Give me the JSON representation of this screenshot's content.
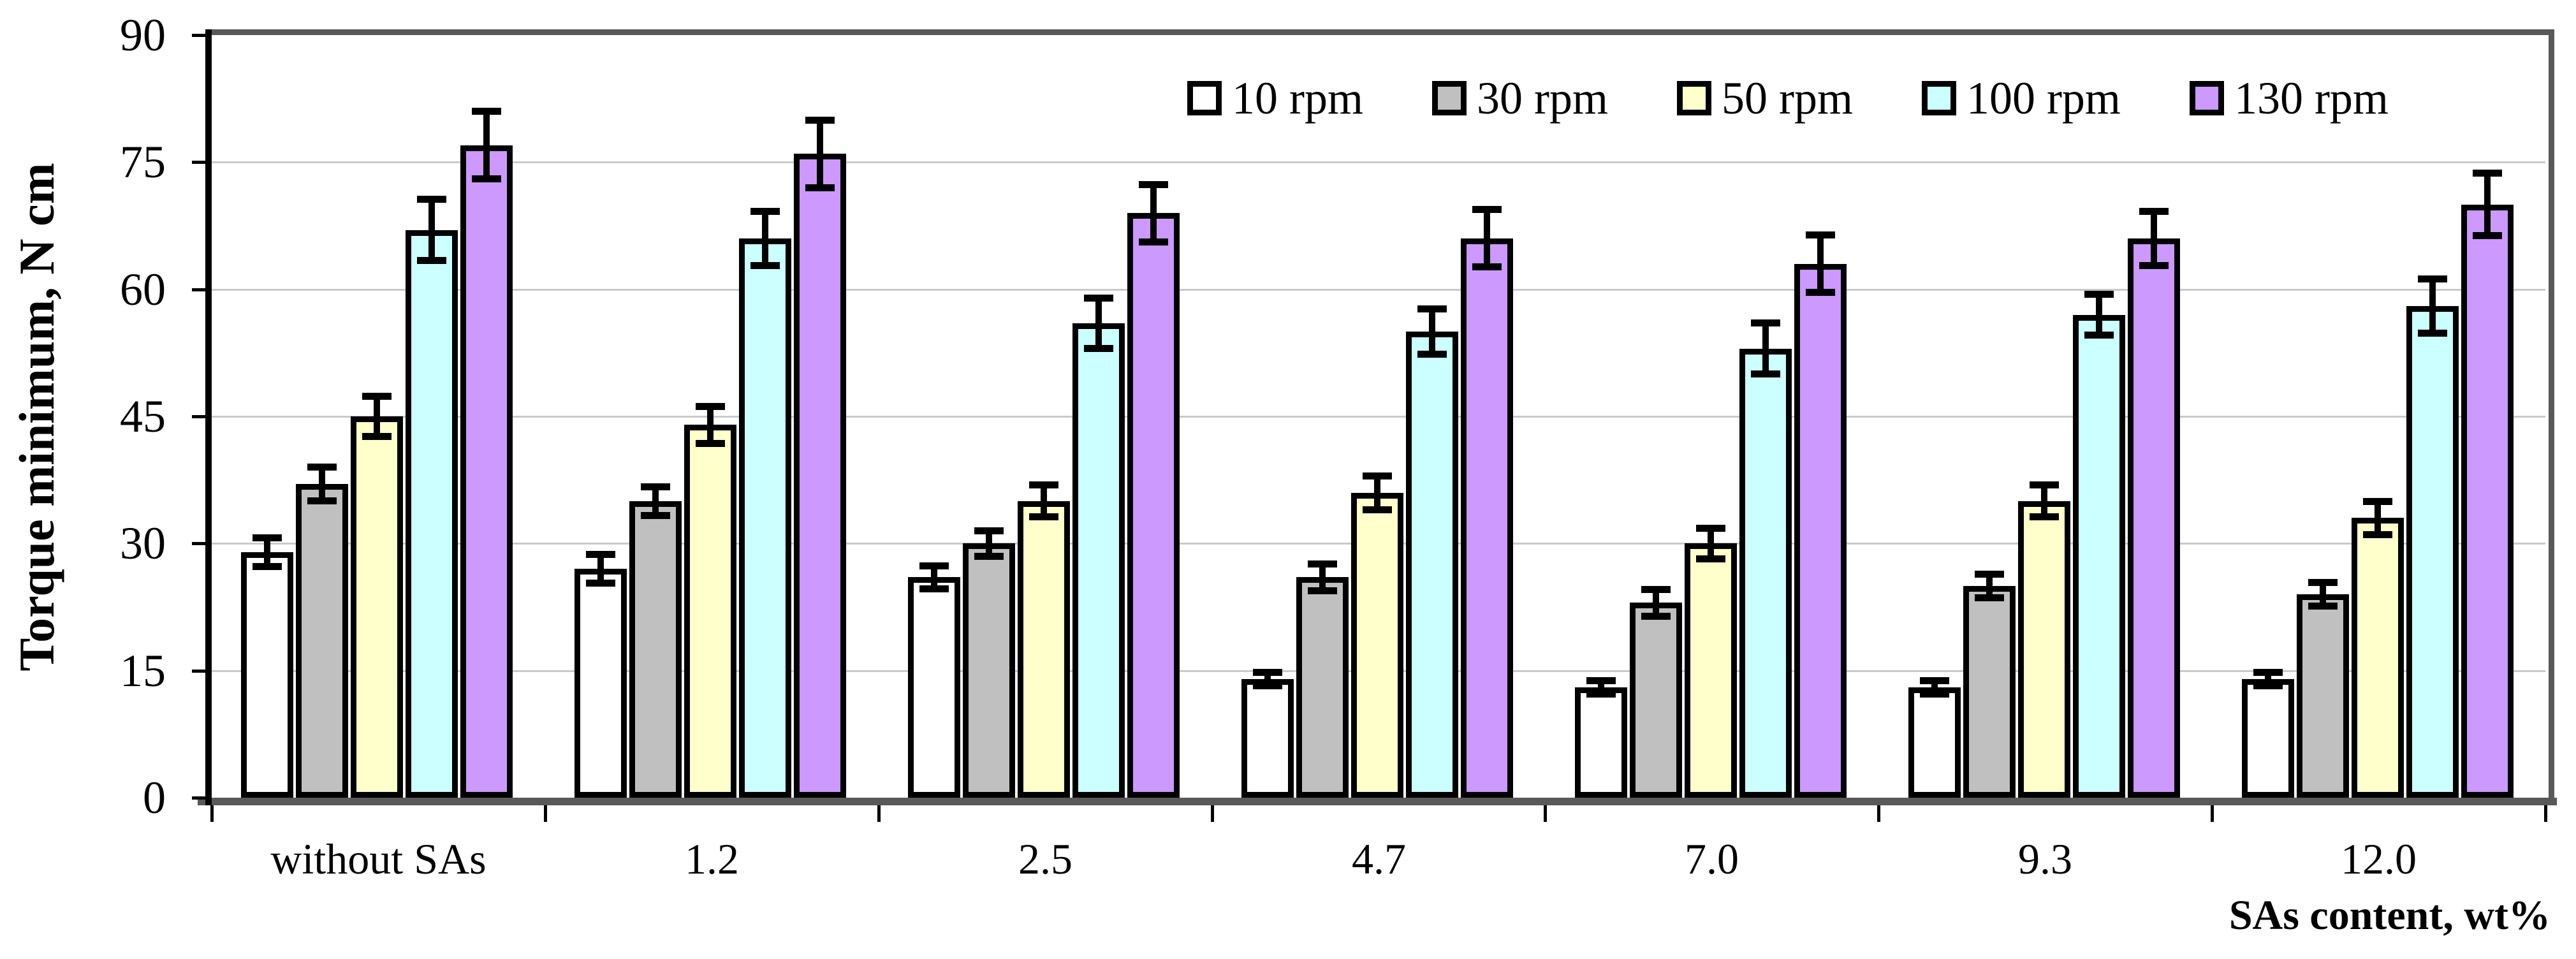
{
  "chart_data": {
    "type": "bar",
    "title": "",
    "ylabel": "Torque minimum, N cm",
    "xlabel": "SAs content, wt%",
    "ylim": [
      0,
      90
    ],
    "ytick_step": 15,
    "yticks": [
      0,
      15,
      30,
      45,
      60,
      75,
      90
    ],
    "grid": "horizontal",
    "gridline_values": [
      15,
      30,
      45,
      60,
      75
    ],
    "legend_position": "top-inside-row",
    "error_bars": true,
    "categories": [
      "without SAs",
      "1.2",
      "2.5",
      "4.7",
      "7.0",
      "9.3",
      "12.0"
    ],
    "series": [
      {
        "name": "10 rpm",
        "color": "#FFFFFF",
        "values": [
          29,
          27,
          26,
          14,
          13,
          13,
          14
        ],
        "errors": [
          1.5,
          1.5,
          1.2,
          0.6,
          0.6,
          0.6,
          0.6
        ]
      },
      {
        "name": "30 rpm",
        "color": "#C0C0C0",
        "values": [
          37,
          35,
          30,
          26,
          23,
          25,
          24
        ],
        "errors": [
          1.8,
          1.5,
          1.3,
          1.4,
          1.4,
          1.2,
          1.2
        ]
      },
      {
        "name": "50 rpm",
        "color": "#FFFFCC",
        "values": [
          45,
          44,
          35,
          36,
          30,
          35,
          33
        ],
        "errors": [
          2.2,
          2.0,
          1.7,
          1.8,
          1.6,
          1.7,
          1.8
        ]
      },
      {
        "name": "100 rpm",
        "color": "#CCFFFF",
        "values": [
          67,
          66,
          56,
          55,
          53,
          57,
          58
        ],
        "errors": [
          3.4,
          3.0,
          2.8,
          2.5,
          2.8,
          2.2,
          3.0
        ]
      },
      {
        "name": "130 rpm",
        "color": "#CC99FF",
        "values": [
          77,
          76,
          69,
          66,
          63,
          66,
          70
        ],
        "errors": [
          3.8,
          3.8,
          3.2,
          3.2,
          3.2,
          3.0,
          3.5
        ]
      }
    ],
    "colors": {
      "bar_border": "#000000",
      "axis": "#000000",
      "frame": "#595959",
      "gridline": "#C9C9C9",
      "background": "#FFFFFF"
    }
  }
}
